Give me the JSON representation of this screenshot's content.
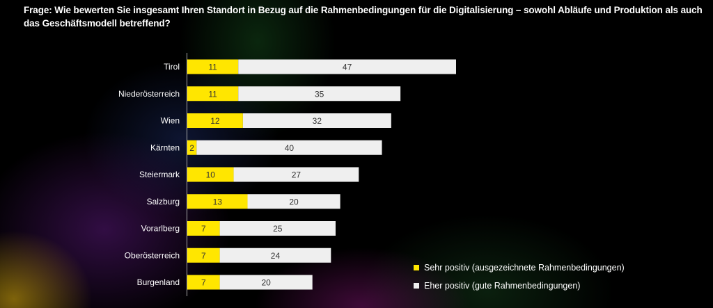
{
  "chart_data": {
    "type": "bar",
    "orientation": "horizontal",
    "stacked": true,
    "title": "Frage: Wie bewerten Sie insgesamt Ihren Standort in Bezug auf die Rahmenbedingungen für die Digitalisierung – sowohl Abläufe und Produktion als auch das Geschäftsmodell betreffend?",
    "categories": [
      "Tirol",
      "Niederösterreich",
      "Wien",
      "Kärnten",
      "Steiermark",
      "Salzburg",
      "Vorarlberg",
      "Oberösterreich",
      "Burgenland"
    ],
    "series": [
      {
        "name": "Sehr positiv (ausgezeichnete Rahmenbedingungen)",
        "color": "#ffe600",
        "values": [
          11,
          11,
          12,
          2,
          10,
          13,
          7,
          7,
          7
        ]
      },
      {
        "name": "Eher positiv (gute Rahmenbedingungen)",
        "color": "#efefef",
        "values": [
          47,
          35,
          32,
          40,
          27,
          20,
          25,
          24,
          20
        ]
      }
    ],
    "xlim": [
      0,
      58
    ],
    "legend": "bottom-right",
    "grid": false
  }
}
